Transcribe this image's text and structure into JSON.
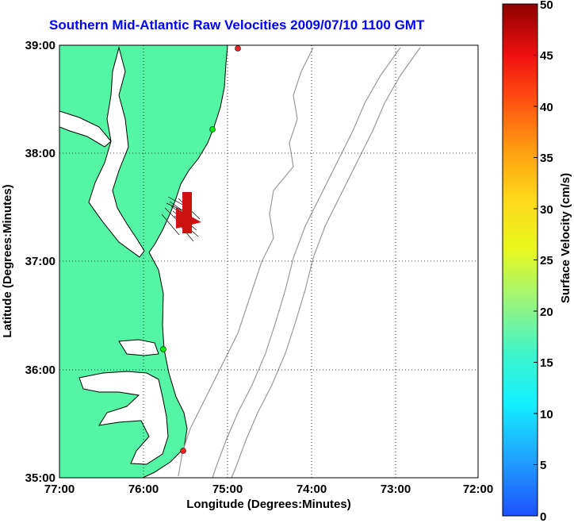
{
  "title": "Southern Mid-Atlantic Raw Velocities 2009/07/10 1100 GMT",
  "x_axis": {
    "label": "Longitude (Degrees:Minutes)",
    "ticks": [
      "77:00",
      "76:00",
      "75:00",
      "74:00",
      "73:00",
      "72:00"
    ]
  },
  "y_axis": {
    "label": "Latitude (Degrees:Minutes)",
    "ticks": [
      "39:00",
      "38:00",
      "37:00",
      "36:00",
      "35:00"
    ]
  },
  "colorbar": {
    "label": "Surface Velocity (cm/s)",
    "ticks": [
      "50",
      "45",
      "40",
      "35",
      "30",
      "25",
      "20",
      "15",
      "10",
      "5",
      "0"
    ]
  },
  "colors": {
    "land": "#55f5a6",
    "coast": "#000000",
    "bathymetry": "#9a9a9a",
    "title": "#0000ff",
    "vector": "#cc1111"
  },
  "stations": [
    {
      "color": "#00ee00"
    },
    {
      "color": "#00ee00"
    },
    {
      "color": "#ff2222"
    },
    {
      "color": "#ff2222"
    }
  ]
}
